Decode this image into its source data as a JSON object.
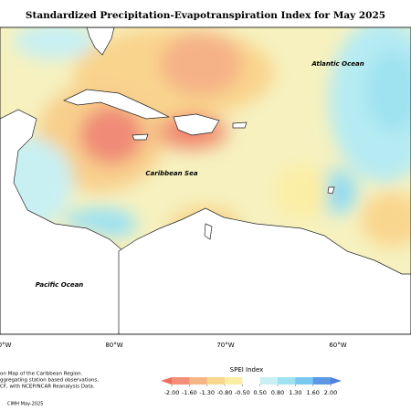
{
  "title": "Standardized Precipitation-Evapotranspiration Index for May 2025",
  "labels": {
    "atlantic": "Atlantic Ocean",
    "caribbean": "Caribbean Sea",
    "pacific": "Pacific Ocean"
  },
  "longitudes": [
    "0°W",
    "80°W",
    "70°W",
    "60°W"
  ],
  "notes": [
    "on Map of the Caribbean Region.",
    "ggregating station based observations,",
    "CF, with NCEP/NCAR Reanalysis Data."
  ],
  "credit": "CIMH May-2025",
  "colorbar": {
    "title": "SPEI Index",
    "ticks": [
      {
        "value": -2,
        "label": "-2.00"
      },
      {
        "value": -1.6,
        "label": "-1.60"
      },
      {
        "value": -1.3,
        "label": "-1.30"
      },
      {
        "value": -0.8,
        "label": "-0.80"
      },
      {
        "value": -0.5,
        "label": "-0.50"
      },
      {
        "value": 0.5,
        "label": "0.50"
      },
      {
        "value": 0.8,
        "label": "0.80"
      },
      {
        "value": 1.3,
        "label": "1.30"
      },
      {
        "value": 1.6,
        "label": "1.60"
      },
      {
        "value": 2,
        "label": "2.00"
      }
    ],
    "colors": [
      "#ee6e5e",
      "#f38f78",
      "#f6b585",
      "#f9d68e",
      "#fbeea4",
      "#ffffff",
      "#c8f0f3",
      "#9fe2f0",
      "#78c8f0",
      "#5c98e6",
      "#4f7fe0"
    ]
  }
}
